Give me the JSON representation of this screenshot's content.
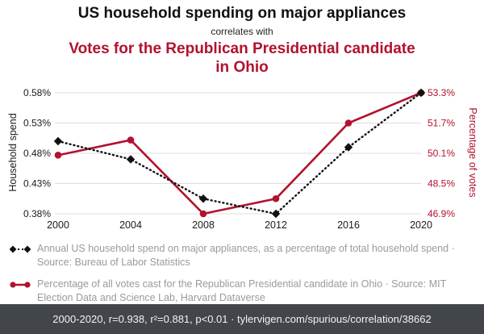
{
  "header": {
    "title": "US household spending on major appliances",
    "subtitle": "correlates with",
    "correlate_title": "Votes for the Republican Presidential candidate in Ohio"
  },
  "colors": {
    "accent_red": "#b2122e",
    "series_black": "#111111",
    "footer_bg": "#42464a",
    "gridline": "#dcdcdc",
    "legend_text": "#9a9a9a"
  },
  "chart_data": {
    "type": "line",
    "title": "US household spending on major appliances correlates with Votes for the Republican Presidential candidate in Ohio",
    "x": [
      2000,
      2004,
      2008,
      2012,
      2016,
      2020
    ],
    "left_axis": {
      "label": "Household spend",
      "min": 0.38,
      "max": 0.58,
      "ticks": [
        {
          "value": 0.58,
          "label": "0.58%"
        },
        {
          "value": 0.53,
          "label": "0.53%"
        },
        {
          "value": 0.48,
          "label": "0.48%"
        },
        {
          "value": 0.43,
          "label": "0.43%"
        },
        {
          "value": 0.38,
          "label": "0.38%"
        }
      ]
    },
    "right_axis": {
      "label": "Percentage of votes",
      "min": 46.9,
      "max": 53.3,
      "ticks": [
        {
          "value": 53.3,
          "label": "53.3%"
        },
        {
          "value": 51.7,
          "label": "51.7%"
        },
        {
          "value": 50.1,
          "label": "50.1%"
        },
        {
          "value": 48.5,
          "label": "48.5%"
        },
        {
          "value": 46.9,
          "label": "46.9%"
        }
      ]
    },
    "series": [
      {
        "name": "household-spend",
        "axis": "left",
        "color": "#111111",
        "style": "dotted",
        "marker": "diamond",
        "values": [
          0.5,
          0.47,
          0.405,
          0.38,
          0.49,
          0.58
        ]
      },
      {
        "name": "republican-votes-ohio",
        "axis": "right",
        "color": "#b2122e",
        "style": "solid",
        "marker": "circle",
        "values": [
          50.0,
          50.8,
          46.9,
          47.7,
          51.7,
          53.3
        ]
      }
    ],
    "grid": "horizontal",
    "legend_position": "below"
  },
  "legend": [
    {
      "color": "#111111",
      "text": "Annual US household spend on major appliances, as a percentage of total household spend · Source: Bureau of Labor Statistics"
    },
    {
      "color": "#b2122e",
      "text": "Percentage of all votes cast for the Republican Presidential candidate in Ohio · Source: MIT Election Data and Science Lab, Harvard Dataverse"
    }
  ],
  "footer": {
    "text": "2000-2020, r=0.938, r²=0.881, p<0.01 · tylervigen.com/spurious/correlation/38662"
  }
}
